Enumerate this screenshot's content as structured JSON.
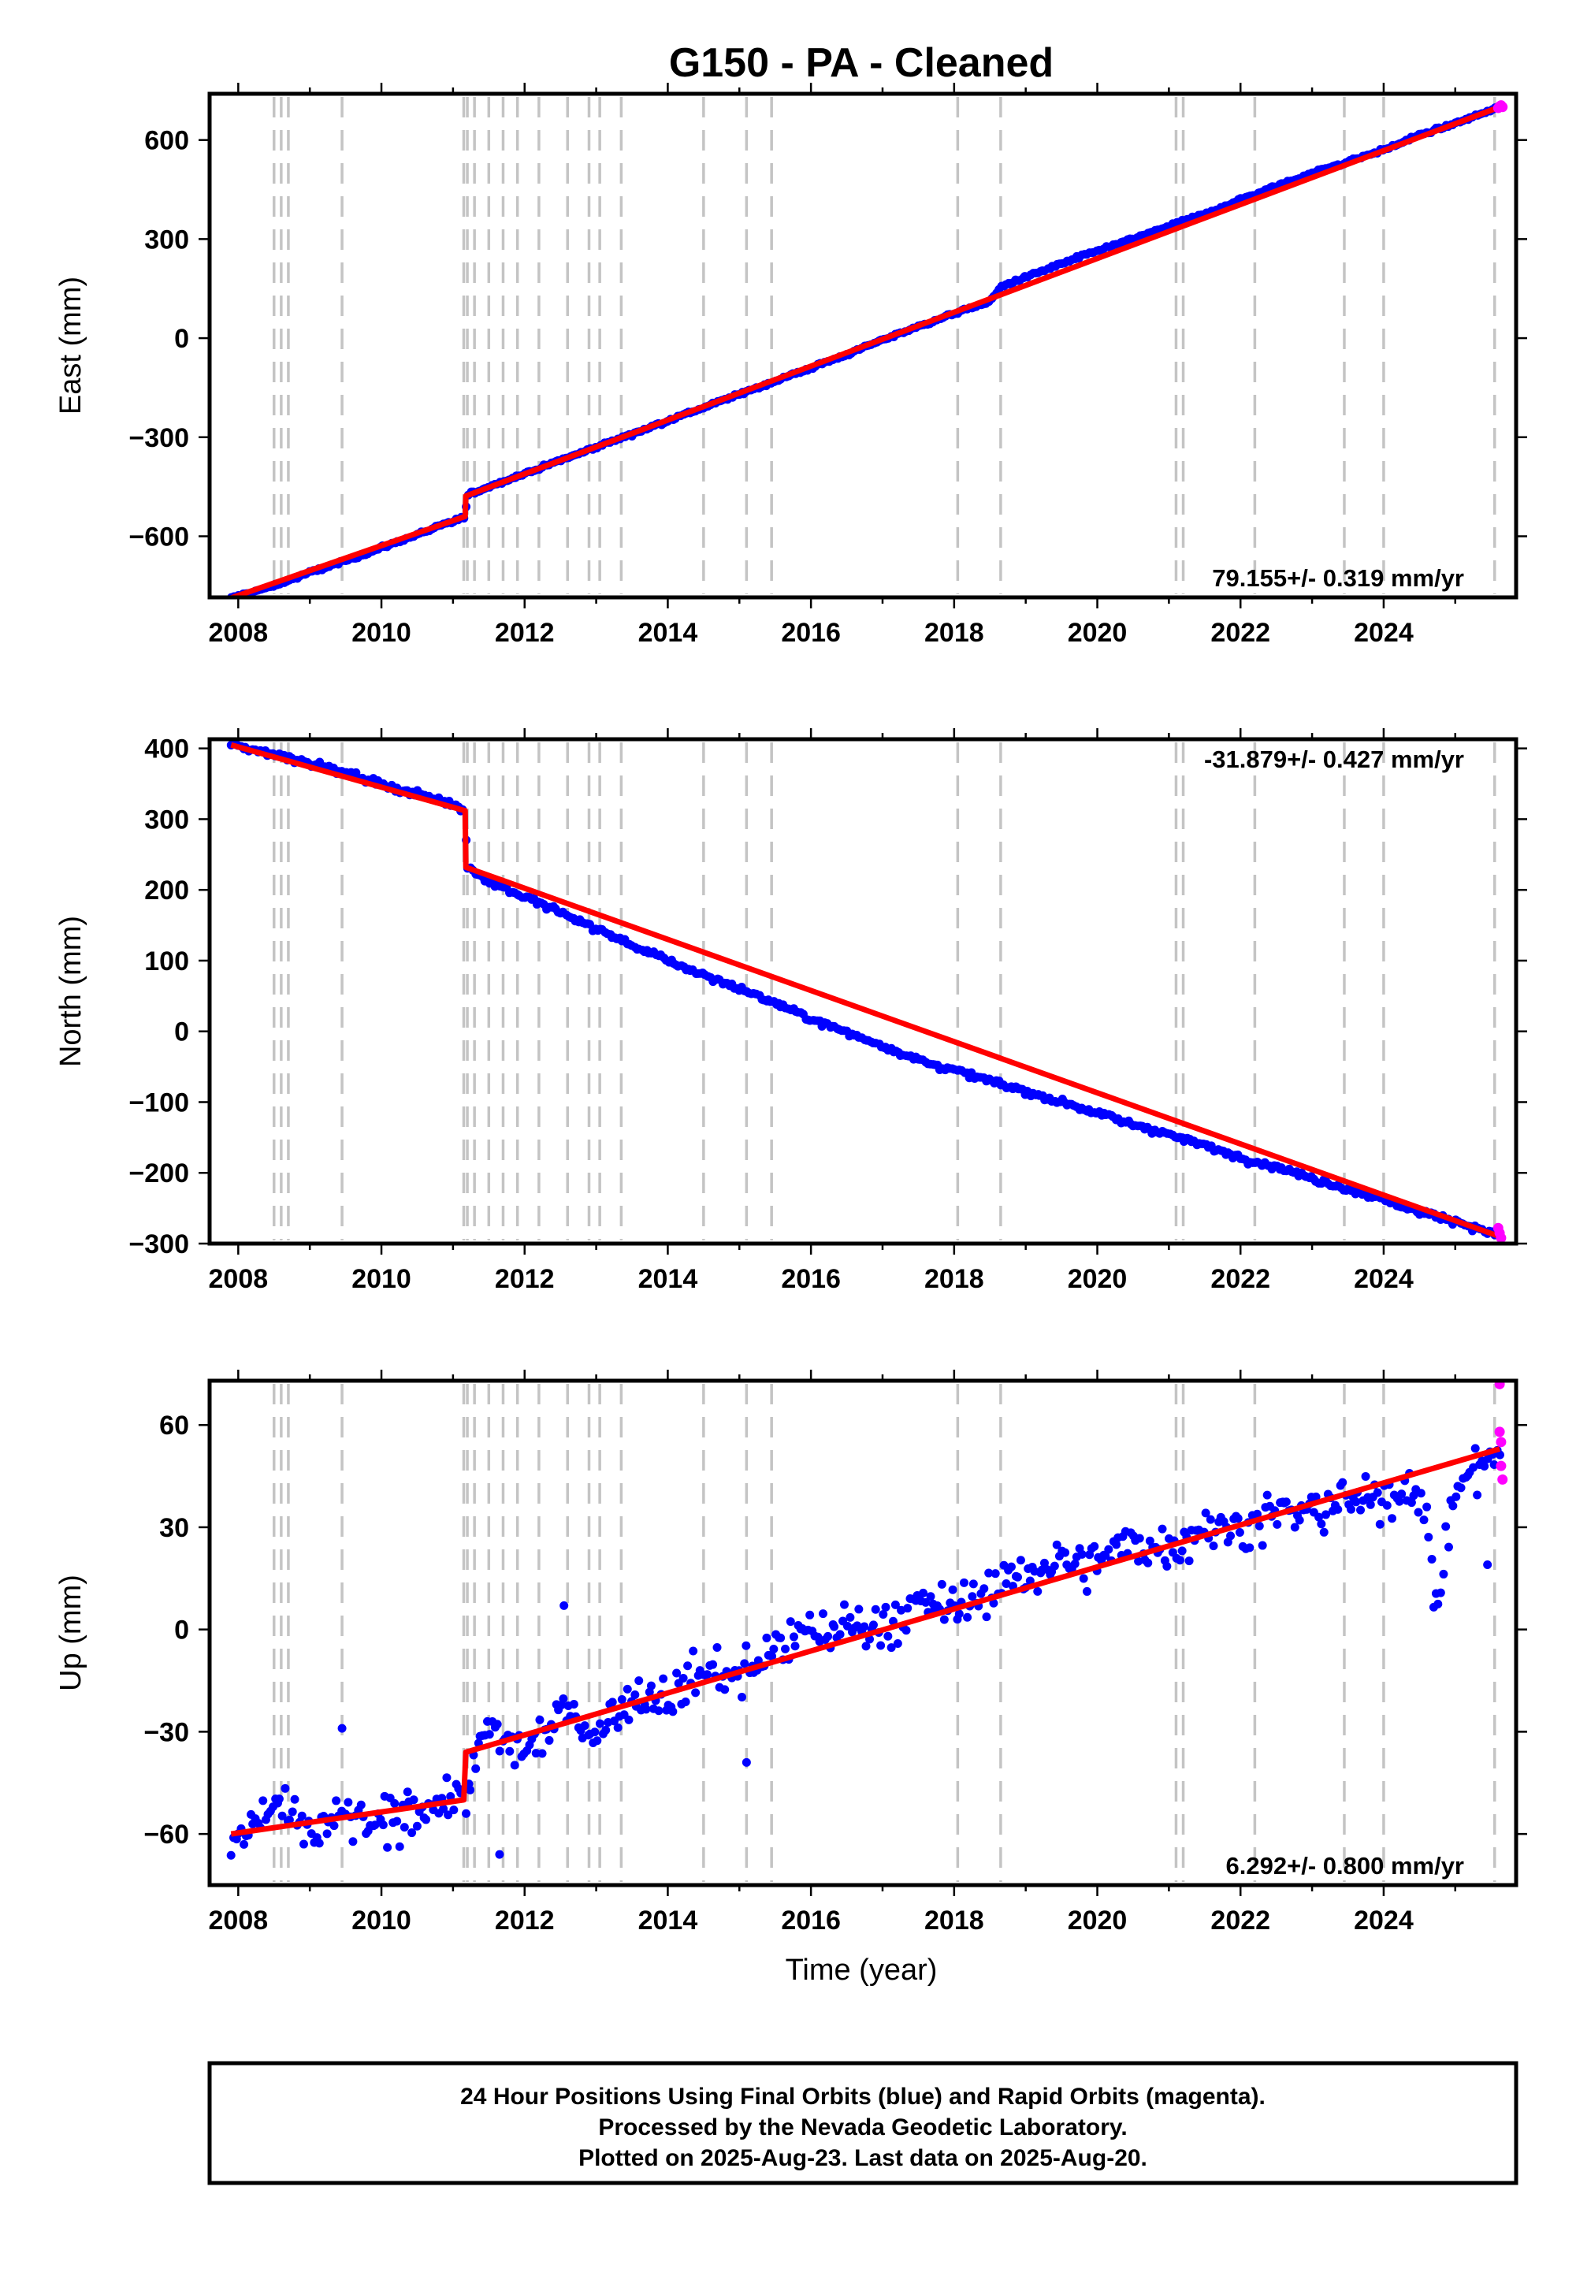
{
  "title": "G150  - PA - Cleaned",
  "x_axis_label": "Time (year)",
  "colors": {
    "final": "#0000ff",
    "rapid": "#ff00ff",
    "model": "#ff0000",
    "events": "#c4c4c4"
  },
  "footer": [
    "24 Hour Positions Using Final Orbits (blue) and Rapid Orbits (magenta).",
    "Processed by the Nevada Geodetic Laboratory.",
    "Plotted on 2025-Aug-23. Last data on 2025-Aug-20."
  ],
  "chart_data": [
    {
      "type": "scatter",
      "ylabel": "East (mm)",
      "rate_text": "79.155+/- 0.319 mm/yr",
      "xlim": [
        2007.6,
        2025.85
      ],
      "ylim": [
        -785,
        740
      ],
      "xticks": [
        2008,
        2010,
        2012,
        2014,
        2016,
        2018,
        2020,
        2022,
        2024
      ],
      "yticks": [
        600,
        300,
        0,
        -300,
        -600
      ],
      "ytick_labels": [
        "600",
        "300",
        "0",
        "−300",
        "−600"
      ],
      "grid": false,
      "event_lines": [
        2008.5,
        2008.6,
        2008.7,
        2009.45,
        2011.15,
        2011.2,
        2011.3,
        2011.5,
        2011.7,
        2011.9,
        2012.2,
        2012.6,
        2012.9,
        2013.05,
        2013.35,
        2014.5,
        2015.1,
        2015.45,
        2018.05,
        2018.65,
        2021.1,
        2021.2,
        2022.2,
        2023.45,
        2024.0,
        2025.55
      ],
      "series": [
        {
          "role": "final",
          "x": [
            2007.9,
            2008.5,
            2009.0,
            2009.5,
            2010.0,
            2010.5,
            2011.0,
            2011.17,
            2011.2,
            2011.5,
            2012.0,
            2012.5,
            2013.0,
            2013.5,
            2014.0,
            2014.5,
            2015.0,
            2015.5,
            2016.0,
            2016.5,
            2017.0,
            2017.5,
            2018.0,
            2018.5,
            2018.65,
            2019.0,
            2019.5,
            2020.0,
            2020.5,
            2021.0,
            2021.5,
            2022.0,
            2022.5,
            2023.0,
            2023.5,
            2024.0,
            2024.5,
            2025.0,
            2025.62
          ],
          "values": [
            -787,
            -750,
            -710,
            -675,
            -635,
            -595,
            -555,
            -540,
            -475,
            -450,
            -410,
            -370,
            -330,
            -290,
            -250,
            -210,
            -170,
            -130,
            -90,
            -50,
            -5,
            35,
            75,
            110,
            155,
            185,
            225,
            265,
            300,
            340,
            375,
            420,
            460,
            500,
            535,
            570,
            615,
            650,
            700
          ]
        },
        {
          "role": "rapid",
          "x": [
            2025.6,
            2025.62,
            2025.64,
            2025.66
          ],
          "values": [
            697,
            702,
            705,
            700
          ]
        },
        {
          "role": "model",
          "x": [
            2007.9,
            2011.17,
            2011.18,
            2025.62
          ],
          "values": [
            -787,
            -540,
            -478,
            700
          ]
        }
      ]
    },
    {
      "type": "scatter",
      "ylabel": "North (mm)",
      "rate_text": "-31.879+/- 0.427 mm/yr",
      "xlim": [
        2007.6,
        2025.85
      ],
      "ylim": [
        -300,
        413
      ],
      "xticks": [
        2008,
        2010,
        2012,
        2014,
        2016,
        2018,
        2020,
        2022,
        2024
      ],
      "yticks": [
        400,
        300,
        200,
        100,
        0,
        -100,
        -200,
        -300
      ],
      "ytick_labels": [
        "400",
        "300",
        "200",
        "100",
        "0",
        "−100",
        "−200",
        "−300"
      ],
      "grid": false,
      "event_lines": [
        2008.5,
        2008.6,
        2008.7,
        2009.45,
        2011.15,
        2011.2,
        2011.3,
        2011.5,
        2011.7,
        2011.9,
        2012.2,
        2012.6,
        2012.9,
        2013.05,
        2013.35,
        2014.5,
        2015.1,
        2015.45,
        2018.05,
        2018.65,
        2021.1,
        2021.2,
        2022.2,
        2023.45,
        2024.0,
        2025.55
      ],
      "series": [
        {
          "role": "final",
          "x": [
            2007.9,
            2008.5,
            2009.0,
            2009.5,
            2010.0,
            2010.5,
            2011.0,
            2011.17,
            2011.2,
            2011.5,
            2012.0,
            2012.5,
            2013.0,
            2013.5,
            2014.0,
            2014.5,
            2015.0,
            2015.5,
            2016.0,
            2016.5,
            2017.0,
            2017.5,
            2018.0,
            2018.5,
            2019.0,
            2019.5,
            2020.0,
            2020.5,
            2021.0,
            2021.5,
            2022.0,
            2022.5,
            2023.0,
            2023.5,
            2024.0,
            2024.5,
            2025.0,
            2025.62
          ],
          "values": [
            405,
            392,
            380,
            365,
            350,
            335,
            322,
            312,
            232,
            212,
            190,
            168,
            145,
            122,
            100,
            80,
            60,
            40,
            18,
            -2,
            -20,
            -40,
            -55,
            -70,
            -85,
            -100,
            -115,
            -132,
            -145,
            -162,
            -178,
            -192,
            -208,
            -222,
            -238,
            -255,
            -268,
            -290
          ]
        },
        {
          "role": "rapid",
          "x": [
            2025.6,
            2025.62,
            2025.64
          ],
          "values": [
            -278,
            -285,
            -292
          ]
        },
        {
          "role": "model",
          "x": [
            2007.9,
            2011.17,
            2011.18,
            2025.62
          ],
          "values": [
            405,
            312,
            232,
            -290
          ]
        }
      ]
    },
    {
      "type": "scatter",
      "ylabel": "Up (mm)",
      "rate_text": "6.292+/- 0.800 mm/yr",
      "xlim": [
        2007.6,
        2025.85
      ],
      "ylim": [
        -75,
        73
      ],
      "xticks": [
        2008,
        2010,
        2012,
        2014,
        2016,
        2018,
        2020,
        2022,
        2024
      ],
      "yticks": [
        60,
        30,
        0,
        -30,
        -60
      ],
      "ytick_labels": [
        "60",
        "30",
        "0",
        "−30",
        "−60"
      ],
      "grid": false,
      "event_lines": [
        2008.5,
        2008.6,
        2008.7,
        2009.45,
        2011.15,
        2011.2,
        2011.3,
        2011.5,
        2011.7,
        2011.9,
        2012.2,
        2012.6,
        2012.9,
        2013.05,
        2013.35,
        2014.5,
        2015.1,
        2015.45,
        2018.05,
        2018.65,
        2021.1,
        2021.2,
        2022.2,
        2023.45,
        2024.0,
        2025.55
      ],
      "series": [
        {
          "role": "final",
          "x": [
            2007.9,
            2008.2,
            2008.5,
            2008.7,
            2009.0,
            2009.5,
            2010.0,
            2010.5,
            2011.0,
            2011.15,
            2011.5,
            2012.0,
            2012.5,
            2013.0,
            2013.5,
            2014.0,
            2014.5,
            2015.0,
            2015.5,
            2016.0,
            2016.5,
            2017.0,
            2017.5,
            2018.0,
            2018.5,
            2019.0,
            2019.5,
            2020.0,
            2020.5,
            2021.0,
            2021.5,
            2022.0,
            2022.5,
            2023.0,
            2023.5,
            2024.0,
            2024.4,
            2024.6,
            2024.75,
            2025.0,
            2025.62
          ],
          "values": [
            -62,
            -58,
            -50,
            -56,
            -60,
            -55,
            -58,
            -52,
            -50,
            -48,
            -30,
            -36,
            -24,
            -30,
            -20,
            -20,
            -12,
            -14,
            -5,
            -2,
            2,
            0,
            8,
            6,
            12,
            16,
            20,
            20,
            26,
            24,
            30,
            30,
            34,
            34,
            38,
            38,
            44,
            30,
            6,
            42,
            52
          ]
        },
        {
          "role": "rapid",
          "x": [
            2025.62,
            2025.62,
            2025.64,
            2025.64,
            2025.66
          ],
          "values": [
            72,
            58,
            55,
            48,
            44
          ]
        },
        {
          "role": "model",
          "x": [
            2007.9,
            2011.15,
            2011.18,
            2025.62
          ],
          "values": [
            -60,
            -50,
            -36,
            53
          ]
        }
      ]
    }
  ]
}
